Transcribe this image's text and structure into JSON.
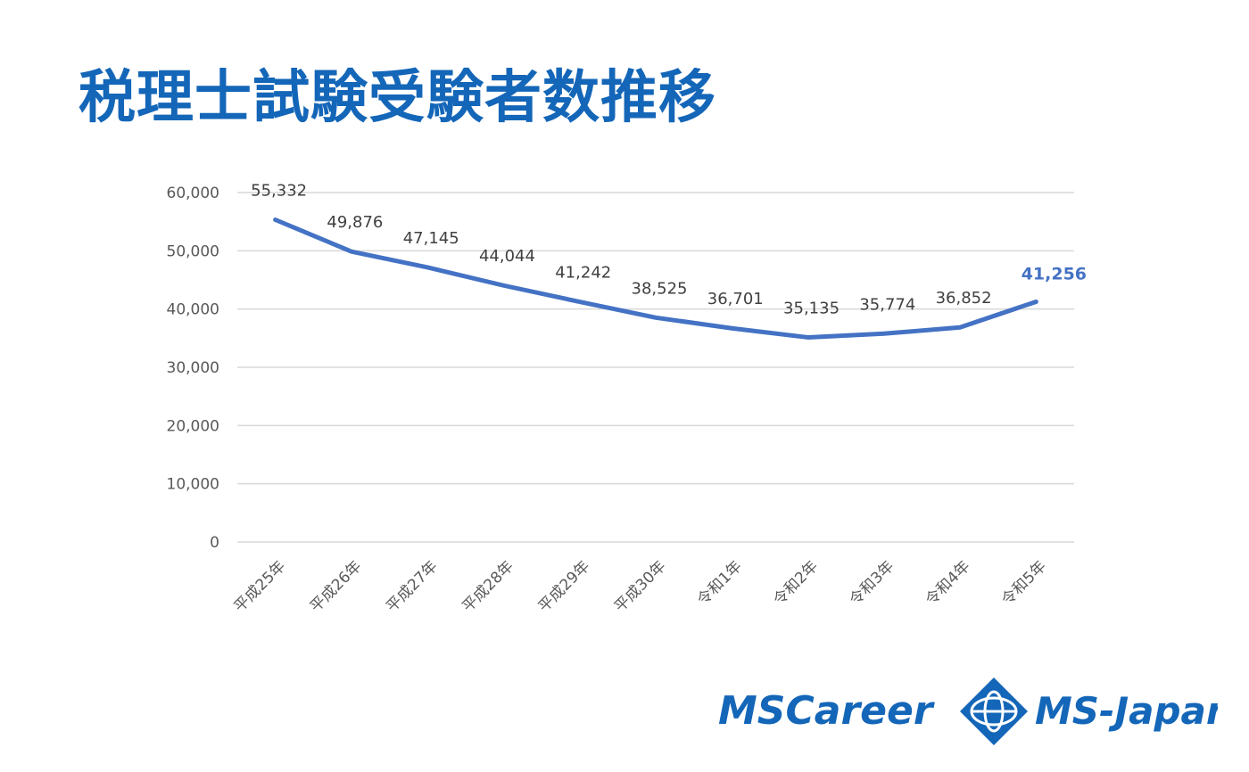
{
  "page": {
    "title": "税理士試験受験者数推移"
  },
  "logo": {
    "left_text": "MSCareer",
    "right_text": "MS-Japan",
    "emblem": "diamond-globe-icon",
    "color": "#1466b8"
  },
  "chart_data": {
    "type": "line",
    "title": "",
    "xlabel": "",
    "ylabel": "",
    "categories": [
      "平成25年",
      "平成26年",
      "平成27年",
      "平成28年",
      "平成29年",
      "平成30年",
      "令和1年",
      "令和2年",
      "令和3年",
      "令和4年",
      "令和5年"
    ],
    "series": [
      {
        "values": [
          55332,
          49876,
          47145,
          44044,
          41242,
          38525,
          36701,
          35135,
          35774,
          36852,
          41256
        ],
        "color": "#4472c4"
      }
    ],
    "data_labels": [
      "55,332",
      "49,876",
      "47,145",
      "44,044",
      "41,242",
      "38,525",
      "36,701",
      "35,135",
      "35,774",
      "36,852",
      "41,256"
    ],
    "highlight_last_label_color": "#4472c4",
    "ylim": [
      0,
      60000
    ],
    "yticks": [
      0,
      10000,
      20000,
      30000,
      40000,
      50000,
      60000
    ],
    "ytick_labels": [
      "0",
      "10,000",
      "20,000",
      "30,000",
      "40,000",
      "50,000",
      "60,000"
    ],
    "grid": true,
    "legend": "none"
  }
}
